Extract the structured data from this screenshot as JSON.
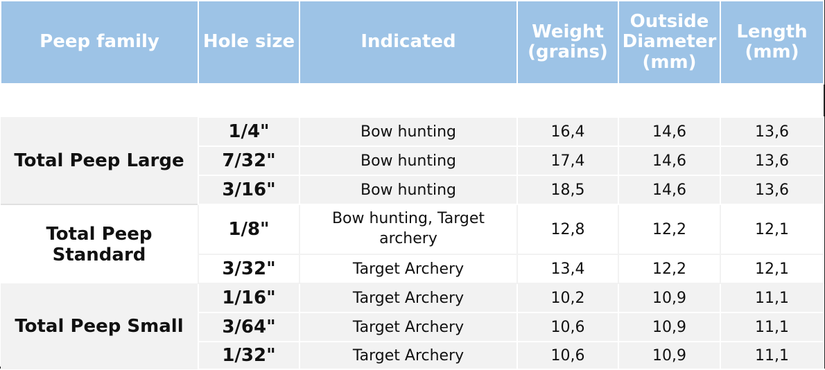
{
  "table": {
    "headers": [
      "Peep family",
      "Hole size",
      "Indicated",
      "Weight (grains)",
      "Outside Diameter (mm)",
      "Length (mm)"
    ],
    "groups": [
      {
        "family": "Total Peep Large",
        "rows": [
          {
            "hole": "1/4\"",
            "indicated": "Bow hunting",
            "weight": "16,4",
            "diameter": "14,6",
            "length": "13,6"
          },
          {
            "hole": "7/32\"",
            "indicated": "Bow hunting",
            "weight": "17,4",
            "diameter": "14,6",
            "length": "13,6"
          },
          {
            "hole": "3/16\"",
            "indicated": "Bow hunting",
            "weight": "18,5",
            "diameter": "14,6",
            "length": "13,6"
          }
        ]
      },
      {
        "family": "Total Peep Standard",
        "rows": [
          {
            "hole": "1/8\"",
            "indicated": "Bow hunting, Target archery",
            "weight": "12,8",
            "diameter": "12,2",
            "length": "12,1"
          },
          {
            "hole": "3/32\"",
            "indicated": "Target Archery",
            "weight": "13,4",
            "diameter": "12,2",
            "length": "12,1"
          }
        ]
      },
      {
        "family": "Total Peep Small",
        "rows": [
          {
            "hole": "1/16\"",
            "indicated": "Target Archery",
            "weight": "10,2",
            "diameter": "10,9",
            "length": "11,1"
          },
          {
            "hole": "3/64\"",
            "indicated": "Target Archery",
            "weight": "10,6",
            "diameter": "10,9",
            "length": "11,1"
          },
          {
            "hole": "1/32\"",
            "indicated": "Target Archery",
            "weight": "10,6",
            "diameter": "10,9",
            "length": "11,1"
          }
        ]
      }
    ]
  }
}
